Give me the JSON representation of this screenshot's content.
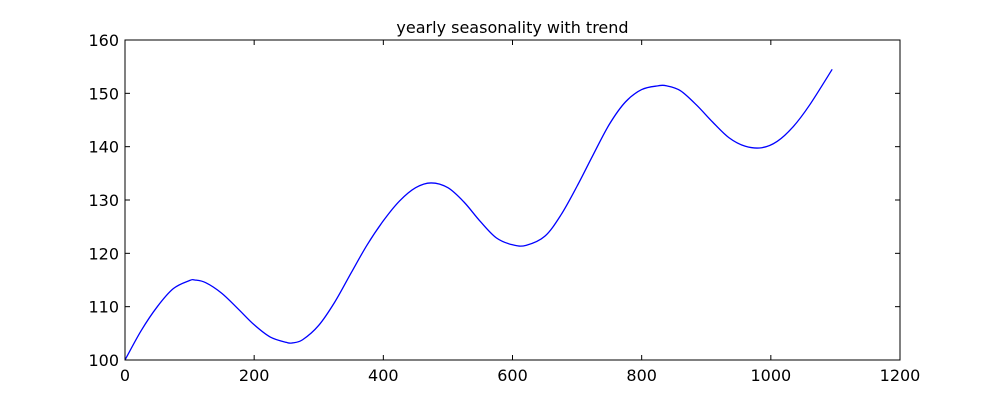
{
  "chart_data": {
    "type": "line",
    "title": "yearly seasonality with trend",
    "xlabel": "",
    "ylabel": "",
    "xlim": [
      0,
      1200
    ],
    "ylim": [
      100,
      160
    ],
    "xticks": [
      0,
      200,
      400,
      600,
      800,
      1000,
      1200
    ],
    "yticks": [
      100,
      110,
      120,
      130,
      140,
      150,
      160
    ],
    "grid": false,
    "legend": "none",
    "series": [
      {
        "color": "#0000ff",
        "x": [
          0,
          25,
          50,
          75,
          100,
          108,
          125,
          150,
          175,
          200,
          225,
          250,
          259,
          275,
          300,
          325,
          350,
          375,
          400,
          425,
          450,
          474,
          500,
          525,
          550,
          575,
          600,
          621,
          650,
          675,
          700,
          725,
          750,
          775,
          800,
          825,
          839,
          860,
          885,
          910,
          935,
          960,
          986,
          1010,
          1035,
          1060,
          1095
        ],
        "y": [
          100.0,
          105.5,
          110.0,
          113.4,
          114.9,
          115.0,
          114.5,
          112.5,
          109.6,
          106.6,
          104.3,
          103.3,
          103.2,
          103.8,
          106.5,
          110.9,
          116.3,
          121.6,
          126.1,
          129.8,
          132.3,
          133.2,
          132.3,
          129.6,
          126.0,
          122.9,
          121.6,
          121.5,
          123.2,
          127.2,
          132.6,
          138.5,
          144.2,
          148.4,
          150.7,
          151.4,
          151.4,
          150.5,
          147.8,
          144.6,
          141.7,
          140.1,
          139.8,
          141.0,
          143.8,
          147.8,
          154.5
        ]
      }
    ]
  }
}
